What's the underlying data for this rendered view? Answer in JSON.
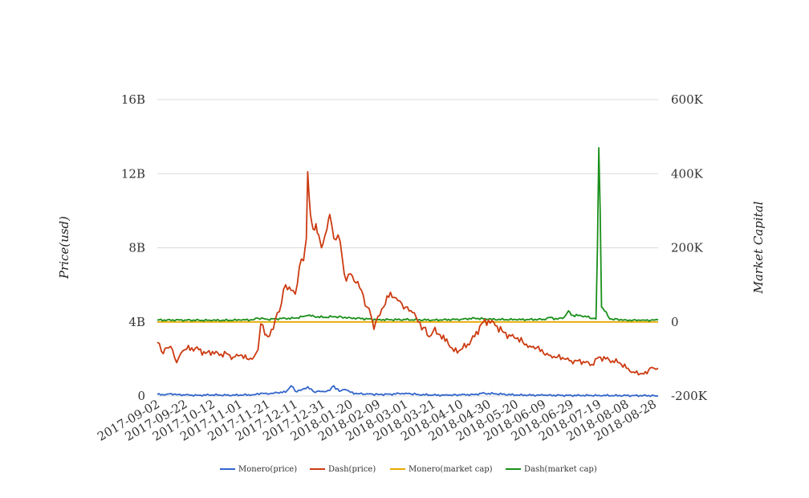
{
  "chart_data": {
    "type": "line",
    "title": "",
    "ylabel_left": "Price(usd)",
    "ylabel_right": "Market Capital",
    "left_axis": {
      "min": 0,
      "max": 16000000000,
      "ticks": [
        0,
        4000000000,
        8000000000,
        12000000000,
        16000000000
      ],
      "tick_labels": [
        "0",
        "4B",
        "8B",
        "12B",
        "16B"
      ]
    },
    "right_axis": {
      "min": -200000,
      "max": 600000,
      "ticks": [
        -200000,
        0,
        200000,
        400000,
        600000
      ],
      "tick_labels": [
        "-200K",
        "0",
        "200K",
        "400K",
        "600K"
      ]
    },
    "x_range": [
      "2017-09-02",
      "2018-08-31"
    ],
    "x_tick_labels": [
      "2017-09-02",
      "2017-09-22",
      "2017-10-12",
      "2017-11-01",
      "2017-11-21",
      "2017-12-11",
      "2017-12-31",
      "2018-01-20",
      "2018-02-09",
      "2018-03-01",
      "2018-03-21",
      "2018-04-10",
      "2018-04-30",
      "2018-05-20",
      "2018-06-09",
      "2018-06-29",
      "2018-07-19",
      "2018-08-08",
      "2018-08-28"
    ],
    "grid": true,
    "legend_position": "bottom",
    "series": [
      {
        "name": "Monero(price)",
        "axis": "left",
        "color": "#3366cc",
        "points": [
          [
            "2017-09-02",
            90000000
          ],
          [
            "2017-09-07",
            50000000
          ],
          [
            "2017-09-12",
            130000000
          ],
          [
            "2017-09-17",
            70000000
          ],
          [
            "2017-09-22",
            50000000
          ],
          [
            "2017-10-02",
            40000000
          ],
          [
            "2017-10-12",
            60000000
          ],
          [
            "2017-10-22",
            40000000
          ],
          [
            "2017-11-01",
            50000000
          ],
          [
            "2017-11-11",
            70000000
          ],
          [
            "2017-11-16",
            150000000
          ],
          [
            "2017-11-21",
            100000000
          ],
          [
            "2017-11-28",
            180000000
          ],
          [
            "2017-12-04",
            200000000
          ],
          [
            "2017-12-08",
            550000000
          ],
          [
            "2017-12-11",
            250000000
          ],
          [
            "2017-12-16",
            350000000
          ],
          [
            "2017-12-20",
            500000000
          ],
          [
            "2017-12-24",
            250000000
          ],
          [
            "2017-12-31",
            250000000
          ],
          [
            "2018-01-05",
            300000000
          ],
          [
            "2018-01-08",
            550000000
          ],
          [
            "2018-01-12",
            250000000
          ],
          [
            "2018-01-16",
            350000000
          ],
          [
            "2018-01-20",
            200000000
          ],
          [
            "2018-01-25",
            120000000
          ],
          [
            "2018-02-01",
            120000000
          ],
          [
            "2018-02-09",
            80000000
          ],
          [
            "2018-02-18",
            100000000
          ],
          [
            "2018-03-01",
            150000000
          ],
          [
            "2018-03-10",
            80000000
          ],
          [
            "2018-03-21",
            50000000
          ],
          [
            "2018-04-01",
            40000000
          ],
          [
            "2018-04-10",
            60000000
          ],
          [
            "2018-04-20",
            80000000
          ],
          [
            "2018-04-25",
            140000000
          ],
          [
            "2018-05-05",
            120000000
          ],
          [
            "2018-05-20",
            50000000
          ],
          [
            "2018-06-09",
            40000000
          ],
          [
            "2018-06-29",
            30000000
          ],
          [
            "2018-07-19",
            30000000
          ],
          [
            "2018-08-08",
            20000000
          ],
          [
            "2018-08-28",
            20000000
          ],
          [
            "2018-08-31",
            10000000
          ]
        ]
      },
      {
        "name": "Dash(price)",
        "axis": "left",
        "color": "#cc3b12",
        "points": [
          [
            "2017-09-02",
            2900000000
          ],
          [
            "2017-09-05",
            2400000000
          ],
          [
            "2017-09-09",
            2600000000
          ],
          [
            "2017-09-13",
            2500000000
          ],
          [
            "2017-09-16",
            1800000000
          ],
          [
            "2017-09-19",
            2300000000
          ],
          [
            "2017-09-22",
            2500000000
          ],
          [
            "2017-09-27",
            2600000000
          ],
          [
            "2017-10-02",
            2500000000
          ],
          [
            "2017-10-07",
            2300000000
          ],
          [
            "2017-10-12",
            2400000000
          ],
          [
            "2017-10-17",
            2200000000
          ],
          [
            "2017-10-22",
            2300000000
          ],
          [
            "2017-10-27",
            2100000000
          ],
          [
            "2017-11-01",
            2200000000
          ],
          [
            "2017-11-06",
            2000000000
          ],
          [
            "2017-11-11",
            2100000000
          ],
          [
            "2017-11-14",
            2500000000
          ],
          [
            "2017-11-16",
            3900000000
          ],
          [
            "2017-11-19",
            3300000000
          ],
          [
            "2017-11-21",
            3200000000
          ],
          [
            "2017-11-25",
            3600000000
          ],
          [
            "2017-11-28",
            4500000000
          ],
          [
            "2017-12-01",
            5000000000
          ],
          [
            "2017-12-04",
            6000000000
          ],
          [
            "2017-12-08",
            5700000000
          ],
          [
            "2017-12-11",
            5500000000
          ],
          [
            "2017-12-14",
            7000000000
          ],
          [
            "2017-12-17",
            7300000000
          ],
          [
            "2017-12-19",
            8500000000
          ],
          [
            "2017-12-20",
            12100000000
          ],
          [
            "2017-12-22",
            9800000000
          ],
          [
            "2017-12-24",
            9000000000
          ],
          [
            "2017-12-26",
            9300000000
          ],
          [
            "2017-12-28",
            8700000000
          ],
          [
            "2017-12-30",
            8000000000
          ],
          [
            "2017-12-31",
            8200000000
          ],
          [
            "2018-01-03",
            9000000000
          ],
          [
            "2018-01-05",
            9800000000
          ],
          [
            "2018-01-08",
            8500000000
          ],
          [
            "2018-01-11",
            8700000000
          ],
          [
            "2018-01-14",
            7500000000
          ],
          [
            "2018-01-17",
            6200000000
          ],
          [
            "2018-01-20",
            6600000000
          ],
          [
            "2018-01-24",
            6100000000
          ],
          [
            "2018-01-28",
            5700000000
          ],
          [
            "2018-02-01",
            4800000000
          ],
          [
            "2018-02-04",
            4300000000
          ],
          [
            "2018-02-06",
            3600000000
          ],
          [
            "2018-02-09",
            4300000000
          ],
          [
            "2018-02-13",
            4800000000
          ],
          [
            "2018-02-18",
            5600000000
          ],
          [
            "2018-02-22",
            5300000000
          ],
          [
            "2018-03-01",
            4800000000
          ],
          [
            "2018-03-06",
            4500000000
          ],
          [
            "2018-03-10",
            4000000000
          ],
          [
            "2018-03-14",
            3700000000
          ],
          [
            "2018-03-18",
            3200000000
          ],
          [
            "2018-03-21",
            3500000000
          ],
          [
            "2018-03-26",
            3300000000
          ],
          [
            "2018-04-01",
            2800000000
          ],
          [
            "2018-04-05",
            2400000000
          ],
          [
            "2018-04-10",
            2500000000
          ],
          [
            "2018-04-15",
            2800000000
          ],
          [
            "2018-04-20",
            3200000000
          ],
          [
            "2018-04-25",
            3900000000
          ],
          [
            "2018-04-30",
            4100000000
          ],
          [
            "2018-05-05",
            3800000000
          ],
          [
            "2018-05-10",
            3500000000
          ],
          [
            "2018-05-15",
            3300000000
          ],
          [
            "2018-05-20",
            3100000000
          ],
          [
            "2018-05-25",
            2900000000
          ],
          [
            "2018-05-30",
            2700000000
          ],
          [
            "2018-06-04",
            2600000000
          ],
          [
            "2018-06-09",
            2300000000
          ],
          [
            "2018-06-14",
            2200000000
          ],
          [
            "2018-06-19",
            2100000000
          ],
          [
            "2018-06-24",
            2000000000
          ],
          [
            "2018-06-29",
            1900000000
          ],
          [
            "2018-07-04",
            1900000000
          ],
          [
            "2018-07-09",
            1800000000
          ],
          [
            "2018-07-14",
            1700000000
          ],
          [
            "2018-07-19",
            2100000000
          ],
          [
            "2018-07-24",
            2000000000
          ],
          [
            "2018-07-29",
            1900000000
          ],
          [
            "2018-08-03",
            1800000000
          ],
          [
            "2018-08-08",
            1500000000
          ],
          [
            "2018-08-13",
            1300000000
          ],
          [
            "2018-08-18",
            1200000000
          ],
          [
            "2018-08-23",
            1200000000
          ],
          [
            "2018-08-25",
            1500000000
          ],
          [
            "2018-08-28",
            1500000000
          ],
          [
            "2018-08-31",
            1500000000
          ]
        ]
      },
      {
        "name": "Monero(market cap)",
        "axis": "right",
        "color": "#e6a800",
        "points": [
          [
            "2017-09-02",
            0
          ],
          [
            "2018-08-31",
            0
          ]
        ]
      },
      {
        "name": "Dash(market cap)",
        "axis": "right",
        "color": "#1a8f1a",
        "points": [
          [
            "2017-09-02",
            5000
          ],
          [
            "2017-09-22",
            5000
          ],
          [
            "2017-10-12",
            4000
          ],
          [
            "2017-11-01",
            5000
          ],
          [
            "2017-11-11",
            6000
          ],
          [
            "2017-11-14",
            10000
          ],
          [
            "2017-11-21",
            7000
          ],
          [
            "2017-12-01",
            9000
          ],
          [
            "2017-12-11",
            10000
          ],
          [
            "2017-12-20",
            17000
          ],
          [
            "2017-12-31",
            12000
          ],
          [
            "2018-01-08",
            14000
          ],
          [
            "2018-01-20",
            11000
          ],
          [
            "2018-02-09",
            6000
          ],
          [
            "2018-03-01",
            6000
          ],
          [
            "2018-03-21",
            5000
          ],
          [
            "2018-04-10",
            7000
          ],
          [
            "2018-04-20",
            10000
          ],
          [
            "2018-04-30",
            7000
          ],
          [
            "2018-05-20",
            6000
          ],
          [
            "2018-06-09",
            7000
          ],
          [
            "2018-06-14",
            12000
          ],
          [
            "2018-06-19",
            7000
          ],
          [
            "2018-06-24",
            13000
          ],
          [
            "2018-06-27",
            30000
          ],
          [
            "2018-06-29",
            18000
          ],
          [
            "2018-07-09",
            16000
          ],
          [
            "2018-07-14",
            9000
          ],
          [
            "2018-07-17",
            8000
          ],
          [
            "2018-07-18",
            200000
          ],
          [
            "2018-07-19",
            470000
          ],
          [
            "2018-07-20",
            300000
          ],
          [
            "2018-07-21",
            40000
          ],
          [
            "2018-07-23",
            30000
          ],
          [
            "2018-07-27",
            8000
          ],
          [
            "2018-08-08",
            5000
          ],
          [
            "2018-08-18",
            4000
          ],
          [
            "2018-08-31",
            5000
          ]
        ]
      }
    ]
  }
}
